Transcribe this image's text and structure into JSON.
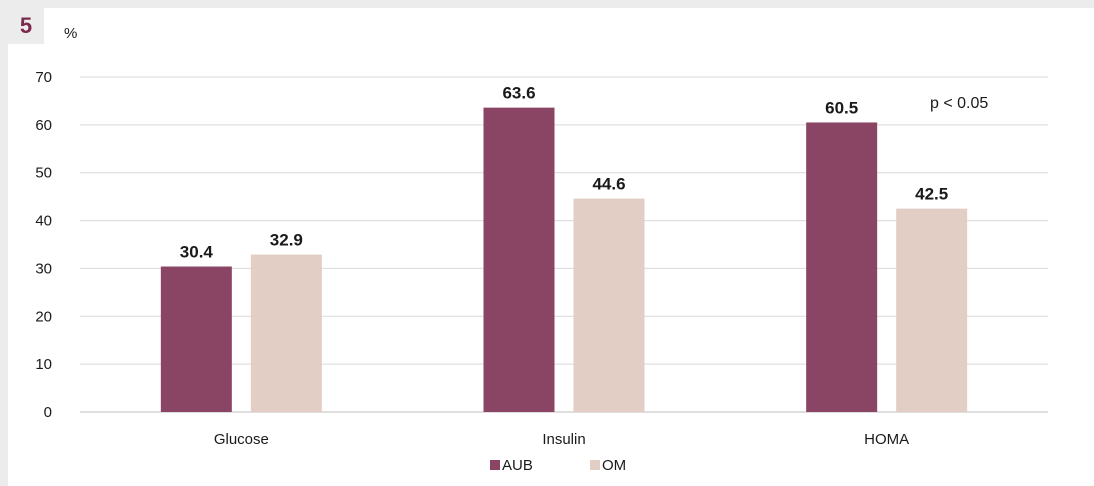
{
  "figure_number": "5",
  "chart_data": {
    "type": "bar",
    "ylabel": "%",
    "ylim": [
      0,
      70
    ],
    "yticks": [
      0,
      10,
      20,
      30,
      40,
      50,
      60,
      70
    ],
    "categories": [
      "Glucose",
      "Insulin",
      "HOMA"
    ],
    "series": [
      {
        "name": "AUB",
        "values": [
          30.4,
          63.6,
          60.5
        ],
        "color": "#8b4564"
      },
      {
        "name": "OM",
        "values": [
          32.9,
          44.6,
          42.5
        ],
        "color": "#e2cec4"
      }
    ],
    "annotation": "p < 0.05",
    "grid": true,
    "legend_position": "bottom-center"
  }
}
